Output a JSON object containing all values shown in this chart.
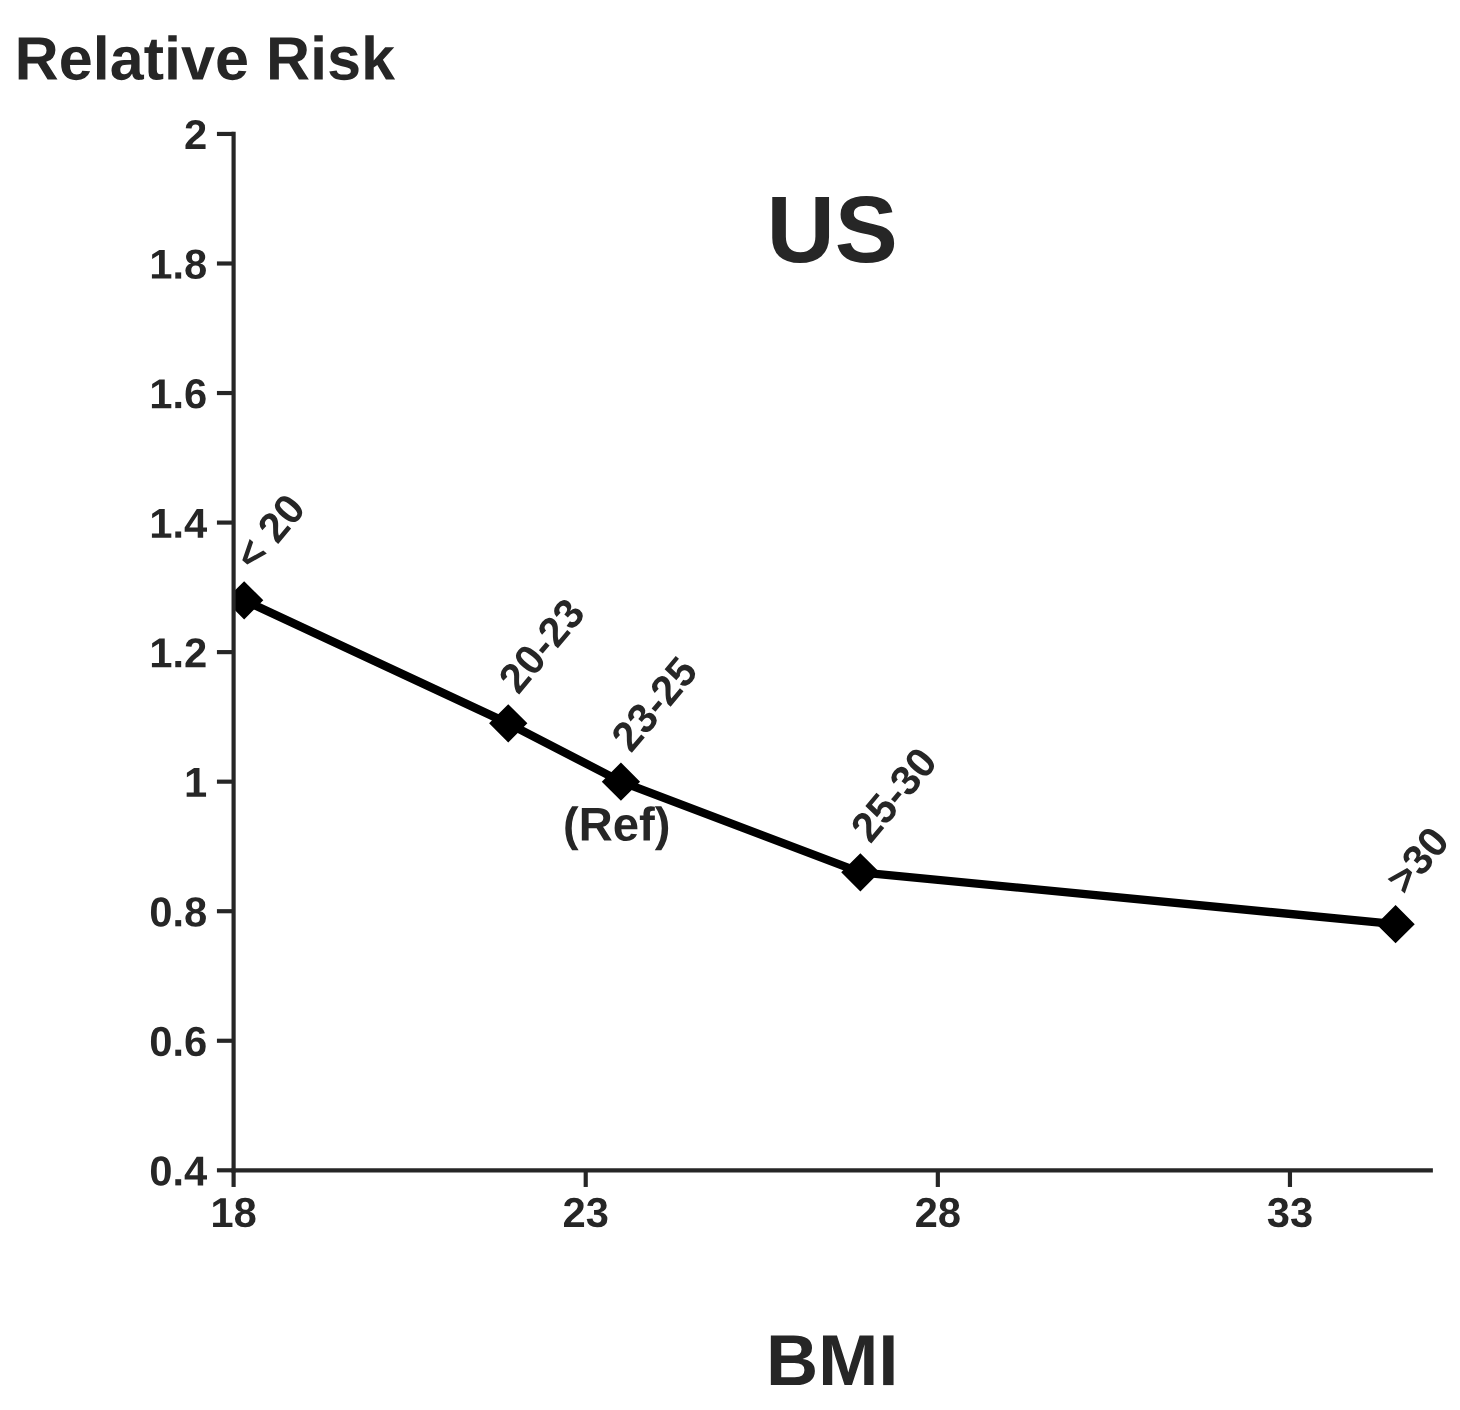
{
  "chart_data": {
    "type": "line",
    "title": "US",
    "xlabel": "BMI",
    "ylabel": "Relative Risk",
    "x": [
      18.15,
      21.9,
      23.5,
      26.9,
      34.5
    ],
    "series": [
      {
        "color": "#000000",
        "values": [
          1.28,
          1.09,
          1.0,
          0.86,
          0.78
        ]
      }
    ],
    "xlim": [
      18,
      35
    ],
    "xticks": [
      18,
      23,
      28,
      33
    ],
    "ylim": [
      0.4,
      2
    ],
    "yticks": [
      0.4,
      0.6,
      0.8,
      1,
      1.2,
      1.4,
      1.6,
      1.8,
      2
    ],
    "marker": "diamond",
    "line_style": "solid",
    "grid": false,
    "legend": false,
    "annotations": [
      {
        "text": "< 20",
        "x": 18.15,
        "y": 1.28
      },
      {
        "text": "20-23",
        "x": 21.9,
        "y": 1.09
      },
      {
        "text": "23-25",
        "x": 23.5,
        "y": 1.0
      },
      {
        "text": "25-30",
        "x": 26.9,
        "y": 0.86
      },
      {
        "text": ">30",
        "x": 34.5,
        "y": 0.78
      },
      "(Ref)"
    ]
  }
}
